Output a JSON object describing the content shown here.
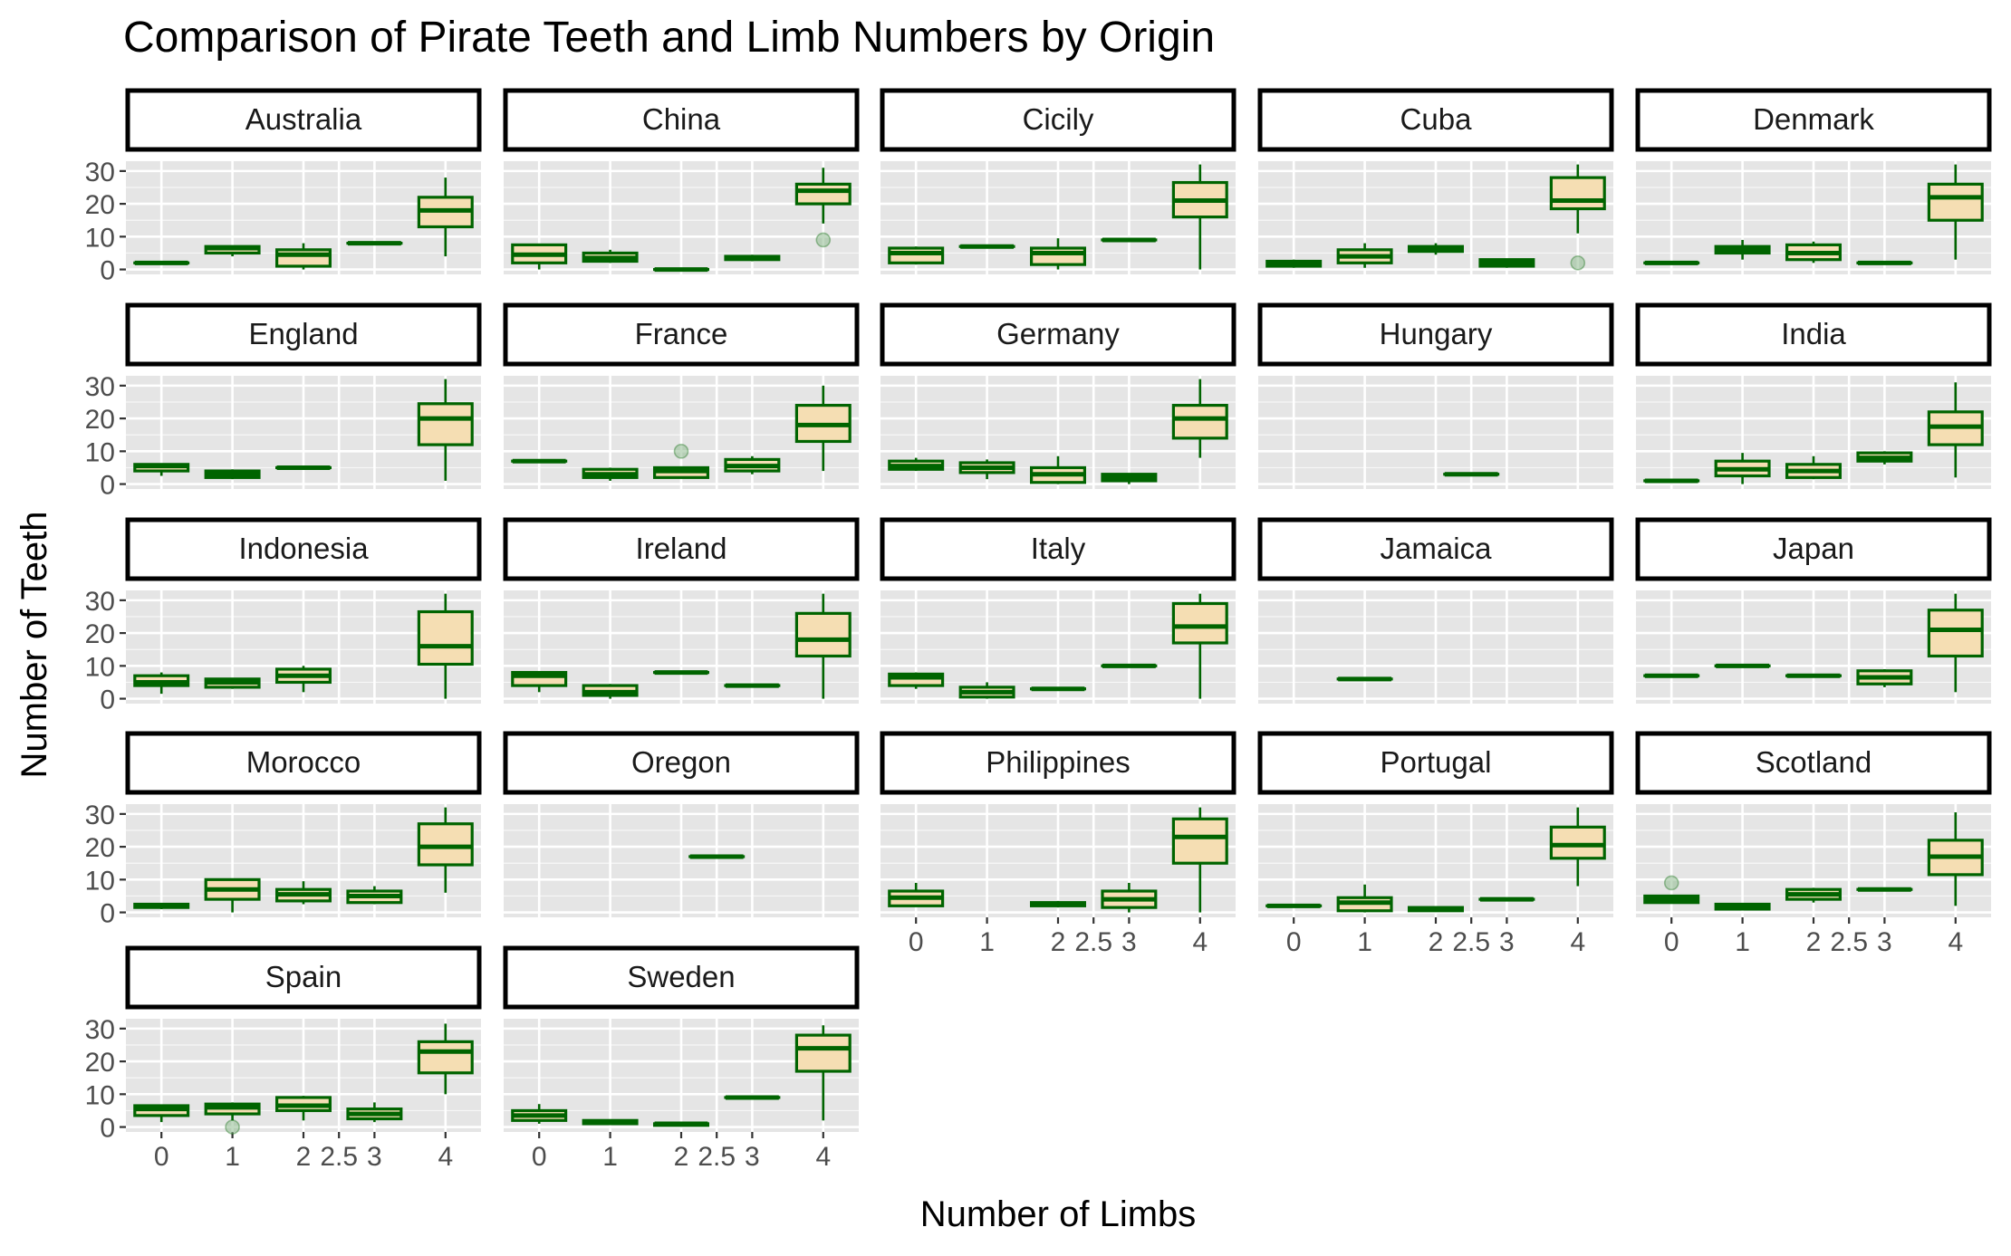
{
  "chart_data": {
    "type": "boxplot-facets",
    "title": "Comparison of Pirate Teeth and Limb Numbers by Origin",
    "xlabel": "Number of Limbs",
    "ylabel": "Number of Teeth",
    "x_ticks": [
      "0",
      "1",
      "2",
      "2.5",
      "3",
      "4"
    ],
    "x_tick_values": [
      0,
      1,
      2,
      2.5,
      3,
      4
    ],
    "xlim": [
      -0.5,
      4.5
    ],
    "y_ticks": [
      0,
      10,
      20,
      30
    ],
    "ylim": [
      -1.5,
      33
    ],
    "grid": true,
    "colors": {
      "panel_bg": "#e5e5e5",
      "grid_major": "#ffffff",
      "box_fill": "#f5deb3",
      "box_line": "#006400",
      "outlier": "#8fbc8f",
      "strip_fill": "#ffffff",
      "strip_border": "#000000",
      "text": "#000000",
      "tick_text": "#4d4d4d"
    },
    "facets": [
      {
        "name": "Australia",
        "x_axis": false,
        "boxes": [
          {
            "x": 0,
            "stats": [
              1.5,
              2,
              2,
              2,
              2.5
            ]
          },
          {
            "x": 1,
            "stats": [
              4,
              5,
              6.5,
              7,
              7
            ]
          },
          {
            "x": 2,
            "stats": [
              0,
              1,
              4.5,
              6,
              8
            ]
          },
          {
            "x": 3,
            "stats": [
              8,
              8,
              8,
              8,
              8
            ]
          },
          {
            "x": 4,
            "stats": [
              4,
              13,
              18,
              22,
              28
            ]
          }
        ],
        "outliers": []
      },
      {
        "name": "China",
        "x_axis": false,
        "boxes": [
          {
            "x": 0,
            "stats": [
              0,
              2,
              4.5,
              7.5,
              7.5
            ]
          },
          {
            "x": 1,
            "stats": [
              2,
              2.5,
              3.5,
              5,
              6
            ]
          },
          {
            "x": 2,
            "stats": [
              0,
              0,
              0,
              0,
              0
            ]
          },
          {
            "x": 3,
            "stats": [
              2.5,
              3,
              3.5,
              4,
              4.5
            ]
          },
          {
            "x": 4,
            "stats": [
              14,
              20,
              24,
              26,
              31
            ]
          }
        ],
        "outliers": [
          {
            "x": 4,
            "y": 9
          }
        ]
      },
      {
        "name": "Cicily",
        "x_axis": false,
        "boxes": [
          {
            "x": 0,
            "stats": [
              1.5,
              2,
              5,
              6.5,
              7
            ]
          },
          {
            "x": 1,
            "stats": [
              7,
              7,
              7,
              7,
              7
            ]
          },
          {
            "x": 2,
            "stats": [
              0,
              1.5,
              5,
              6.5,
              9.5
            ]
          },
          {
            "x": 3,
            "stats": [
              9,
              9,
              9,
              9,
              9
            ]
          },
          {
            "x": 4,
            "stats": [
              0,
              16,
              21,
              26.5,
              32
            ]
          }
        ],
        "outliers": []
      },
      {
        "name": "Cuba",
        "x_axis": false,
        "boxes": [
          {
            "x": 0,
            "stats": [
              0.5,
              1,
              1.5,
              2.5,
              3
            ]
          },
          {
            "x": 1,
            "stats": [
              0.5,
              2,
              4,
              6,
              8
            ]
          },
          {
            "x": 2,
            "stats": [
              4.5,
              5.5,
              6.5,
              7,
              8
            ]
          },
          {
            "x": 3,
            "stats": [
              0.5,
              1,
              2,
              3,
              3
            ]
          },
          {
            "x": 4,
            "stats": [
              11,
              18.5,
              21,
              28,
              32
            ]
          }
        ],
        "outliers": [
          {
            "x": 4,
            "y": 2
          }
        ]
      },
      {
        "name": "Denmark",
        "x_axis": false,
        "boxes": [
          {
            "x": 0,
            "stats": [
              1.5,
              2,
              2,
              2,
              2.5
            ]
          },
          {
            "x": 1,
            "stats": [
              3,
              5,
              6,
              7,
              9
            ]
          },
          {
            "x": 2,
            "stats": [
              2,
              3,
              5,
              7.5,
              8.5
            ]
          },
          {
            "x": 3,
            "stats": [
              1.5,
              2,
              2,
              2,
              2.5
            ]
          },
          {
            "x": 4,
            "stats": [
              3,
              15,
              22,
              26,
              32
            ]
          }
        ],
        "outliers": []
      },
      {
        "name": "England",
        "x_axis": false,
        "boxes": [
          {
            "x": 0,
            "stats": [
              2.5,
              4,
              5.5,
              6,
              6
            ]
          },
          {
            "x": 1,
            "stats": [
              1.5,
              2,
              3,
              4,
              4.5
            ]
          },
          {
            "x": 2,
            "stats": [
              5,
              5,
              5,
              5,
              5
            ]
          },
          {
            "x": 4,
            "stats": [
              1,
              12,
              20,
              24.5,
              32
            ]
          }
        ],
        "outliers": []
      },
      {
        "name": "France",
        "x_axis": false,
        "boxes": [
          {
            "x": 0,
            "stats": [
              7,
              7,
              7,
              7,
              7
            ]
          },
          {
            "x": 1,
            "stats": [
              1,
              2,
              3,
              4.5,
              5
            ]
          },
          {
            "x": 2,
            "stats": [
              2,
              2,
              4,
              5,
              5
            ]
          },
          {
            "x": 3,
            "stats": [
              3,
              4,
              5.5,
              7.5,
              8.5
            ]
          },
          {
            "x": 4,
            "stats": [
              4,
              13,
              18,
              24,
              30
            ]
          }
        ],
        "outliers": [
          {
            "x": 2,
            "y": 10
          }
        ]
      },
      {
        "name": "Germany",
        "x_axis": false,
        "boxes": [
          {
            "x": 0,
            "stats": [
              4,
              4.5,
              5.5,
              7,
              8
            ]
          },
          {
            "x": 1,
            "stats": [
              1.5,
              3.5,
              5,
              6.5,
              7.5
            ]
          },
          {
            "x": 2,
            "stats": [
              0,
              0.5,
              3,
              5,
              8.5
            ]
          },
          {
            "x": 3,
            "stats": [
              0,
              1,
              2,
              3,
              3
            ]
          },
          {
            "x": 4,
            "stats": [
              8,
              14,
              20,
              24,
              32
            ]
          }
        ],
        "outliers": []
      },
      {
        "name": "Hungary",
        "x_axis": false,
        "boxes": [
          {
            "x": 2.5,
            "stats": [
              3,
              3,
              3,
              3,
              3
            ]
          }
        ],
        "outliers": []
      },
      {
        "name": "India",
        "x_axis": false,
        "boxes": [
          {
            "x": 0,
            "stats": [
              1,
              1,
              1,
              1,
              1
            ]
          },
          {
            "x": 1,
            "stats": [
              0,
              2.5,
              4.5,
              7,
              9.5
            ]
          },
          {
            "x": 2,
            "stats": [
              1.5,
              2,
              4,
              6,
              8.5
            ]
          },
          {
            "x": 3,
            "stats": [
              6,
              7,
              8,
              9.5,
              10
            ]
          },
          {
            "x": 4,
            "stats": [
              2,
              12,
              17.5,
              22,
              31
            ]
          }
        ],
        "outliers": []
      },
      {
        "name": "Indonesia",
        "x_axis": false,
        "boxes": [
          {
            "x": 0,
            "stats": [
              1.5,
              4,
              5,
              7,
              8
            ]
          },
          {
            "x": 1,
            "stats": [
              3,
              3.5,
              5,
              6,
              6
            ]
          },
          {
            "x": 2,
            "stats": [
              2,
              5,
              7,
              9,
              10
            ]
          },
          {
            "x": 4,
            "stats": [
              0,
              10.5,
              16,
              26.5,
              32
            ]
          }
        ],
        "outliers": []
      },
      {
        "name": "Ireland",
        "x_axis": false,
        "boxes": [
          {
            "x": 0,
            "stats": [
              2,
              4,
              7,
              8,
              8
            ]
          },
          {
            "x": 1,
            "stats": [
              0,
              1,
              2,
              4,
              4.5
            ]
          },
          {
            "x": 2,
            "stats": [
              8,
              8,
              8,
              8,
              8
            ]
          },
          {
            "x": 3,
            "stats": [
              4,
              4,
              4,
              4,
              4
            ]
          },
          {
            "x": 4,
            "stats": [
              0,
              13,
              18,
              26,
              32
            ]
          }
        ],
        "outliers": []
      },
      {
        "name": "Italy",
        "x_axis": false,
        "boxes": [
          {
            "x": 0,
            "stats": [
              3,
              4,
              6.5,
              7.5,
              8
            ]
          },
          {
            "x": 1,
            "stats": [
              0,
              0.5,
              2,
              3.5,
              5
            ]
          },
          {
            "x": 2,
            "stats": [
              3,
              3,
              3,
              3,
              3
            ]
          },
          {
            "x": 3,
            "stats": [
              10,
              10,
              10,
              10,
              10
            ]
          },
          {
            "x": 4,
            "stats": [
              0,
              17,
              22,
              29,
              32
            ]
          }
        ],
        "outliers": []
      },
      {
        "name": "Jamaica",
        "x_axis": false,
        "boxes": [
          {
            "x": 1,
            "stats": [
              6,
              6,
              6,
              6,
              6
            ]
          }
        ],
        "outliers": []
      },
      {
        "name": "Japan",
        "x_axis": false,
        "boxes": [
          {
            "x": 0,
            "stats": [
              7,
              7,
              7,
              7,
              7
            ]
          },
          {
            "x": 1,
            "stats": [
              10,
              10,
              10,
              10,
              10
            ]
          },
          {
            "x": 2,
            "stats": [
              7,
              7,
              7,
              7,
              7
            ]
          },
          {
            "x": 3,
            "stats": [
              3.5,
              4.5,
              6.5,
              8.5,
              9
            ]
          },
          {
            "x": 4,
            "stats": [
              2,
              13,
              21,
              27,
              32
            ]
          }
        ],
        "outliers": []
      },
      {
        "name": "Morocco",
        "x_axis": false,
        "boxes": [
          {
            "x": 0,
            "stats": [
              1,
              1.5,
              2,
              2.5,
              2.5
            ]
          },
          {
            "x": 1,
            "stats": [
              0,
              4,
              7,
              10,
              10
            ]
          },
          {
            "x": 2,
            "stats": [
              2.5,
              3.5,
              5.5,
              7,
              9.5
            ]
          },
          {
            "x": 3,
            "stats": [
              2.5,
              3,
              5,
              6.5,
              8
            ]
          },
          {
            "x": 4,
            "stats": [
              6,
              14.5,
              20,
              27,
              32
            ]
          }
        ],
        "outliers": []
      },
      {
        "name": "Oregon",
        "x_axis": false,
        "boxes": [
          {
            "x": 2.5,
            "stats": [
              17,
              17,
              17,
              17,
              17
            ]
          }
        ],
        "outliers": []
      },
      {
        "name": "Philippines",
        "x_axis": true,
        "boxes": [
          {
            "x": 0,
            "stats": [
              2,
              2,
              4.5,
              6.5,
              9
            ]
          },
          {
            "x": 2,
            "stats": [
              1.5,
              2,
              2.5,
              3,
              3.5
            ]
          },
          {
            "x": 3,
            "stats": [
              0,
              1.5,
              4,
              6.5,
              9
            ]
          },
          {
            "x": 4,
            "stats": [
              0,
              15,
              23,
              28.5,
              32
            ]
          }
        ],
        "outliers": []
      },
      {
        "name": "Portugal",
        "x_axis": true,
        "boxes": [
          {
            "x": 0,
            "stats": [
              2,
              2,
              2,
              2,
              2
            ]
          },
          {
            "x": 1,
            "stats": [
              0,
              0.5,
              3,
              4.5,
              8.5
            ]
          },
          {
            "x": 2,
            "stats": [
              0.5,
              0.5,
              1,
              1.5,
              1.5
            ]
          },
          {
            "x": 3,
            "stats": [
              4,
              4,
              4,
              4,
              4
            ]
          },
          {
            "x": 4,
            "stats": [
              8,
              16.5,
              20.5,
              26,
              32
            ]
          }
        ],
        "outliers": []
      },
      {
        "name": "Scotland",
        "x_axis": true,
        "boxes": [
          {
            "x": 0,
            "stats": [
              3,
              3,
              4,
              5,
              5
            ]
          },
          {
            "x": 1,
            "stats": [
              1,
              1,
              1.5,
              2.5,
              2.5
            ]
          },
          {
            "x": 2,
            "stats": [
              3,
              4,
              5.5,
              7,
              7.5
            ]
          },
          {
            "x": 3,
            "stats": [
              7,
              7,
              7,
              7,
              7
            ]
          },
          {
            "x": 4,
            "stats": [
              2,
              11.5,
              17,
              22,
              30.5
            ]
          }
        ],
        "outliers": [
          {
            "x": 0,
            "y": 9
          }
        ]
      },
      {
        "name": "Spain",
        "x_axis": true,
        "boxes": [
          {
            "x": 0,
            "stats": [
              1.5,
              3.5,
              5.5,
              6.5,
              6.5
            ]
          },
          {
            "x": 1,
            "stats": [
              2,
              4,
              6,
              7,
              7.5
            ]
          },
          {
            "x": 2,
            "stats": [
              2,
              5,
              6.5,
              9,
              9.5
            ]
          },
          {
            "x": 3,
            "stats": [
              1.5,
              2.5,
              4,
              5.5,
              7.5
            ]
          },
          {
            "x": 4,
            "stats": [
              10,
              16.5,
              23,
              26,
              31.5
            ]
          }
        ],
        "outliers": [
          {
            "x": 1,
            "y": 0
          }
        ]
      },
      {
        "name": "Sweden",
        "x_axis": true,
        "boxes": [
          {
            "x": 0,
            "stats": [
              1,
              2,
              3.5,
              5,
              7
            ]
          },
          {
            "x": 1,
            "stats": [
              1,
              1,
              1.5,
              2,
              2
            ]
          },
          {
            "x": 2,
            "stats": [
              0.5,
              0.5,
              1,
              1,
              1
            ]
          },
          {
            "x": 3,
            "stats": [
              9,
              9,
              9,
              9,
              9
            ]
          },
          {
            "x": 4,
            "stats": [
              2,
              17,
              24,
              28,
              31
            ]
          }
        ],
        "outliers": []
      }
    ]
  }
}
